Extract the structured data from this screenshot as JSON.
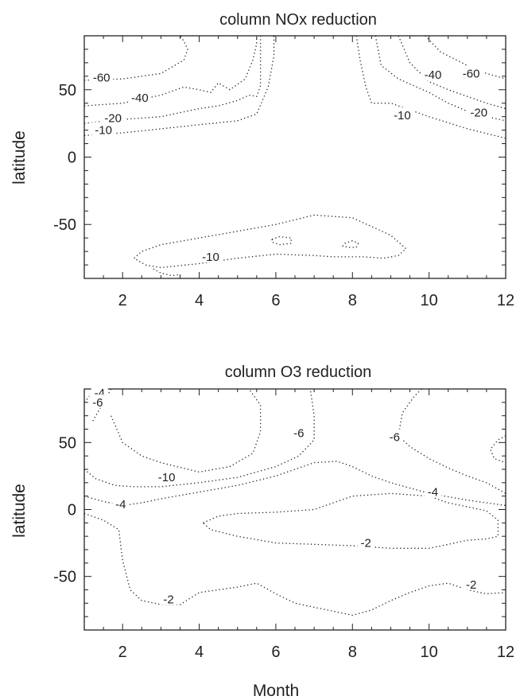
{
  "chart_data": [
    {
      "type": "contour",
      "title": "column NOx reduction",
      "xlabel": "",
      "ylabel": "latitude",
      "xlim": [
        1,
        12
      ],
      "ylim": [
        -90,
        90
      ],
      "xticks": [
        2,
        4,
        6,
        8,
        10,
        12
      ],
      "yticks": [
        -50,
        0,
        50
      ],
      "grid": false,
      "contours": [
        {
          "level": -60,
          "x": [
            1,
            2,
            3,
            3.6,
            3.7,
            3.6,
            3.5
          ],
          "y": [
            57,
            58,
            62,
            72,
            80,
            86,
            90
          ]
        },
        {
          "level": -40,
          "x": [
            1,
            2,
            3,
            3.6,
            4,
            4.3,
            4.5,
            4.8,
            5.2,
            5.4,
            5.5,
            5.5
          ],
          "y": [
            38,
            40,
            46,
            52,
            50,
            48,
            55,
            50,
            58,
            72,
            84,
            90
          ]
        },
        {
          "level": -20,
          "x": [
            1,
            2,
            3,
            4,
            4.5,
            5,
            5.3,
            5.5,
            5.6,
            5.6,
            5.6
          ],
          "y": [
            25,
            28,
            30,
            36,
            38,
            42,
            46,
            45,
            53,
            72,
            90
          ]
        },
        {
          "level": -10,
          "x": [
            1,
            2,
            3,
            4,
            5,
            5.5,
            5.8,
            5.95,
            5.95
          ],
          "y": [
            16,
            18,
            21,
            24,
            27,
            32,
            52,
            75,
            90
          ]
        },
        {
          "level": -60,
          "x": [
            9.9,
            10.3,
            11,
            11.5,
            12
          ],
          "y": [
            90,
            78,
            68,
            62,
            58
          ]
        },
        {
          "level": -40,
          "x": [
            9.2,
            9.5,
            10,
            10.5,
            11,
            11.5,
            12
          ],
          "y": [
            90,
            70,
            56,
            50,
            45,
            40,
            36
          ]
        },
        {
          "level": -20,
          "x": [
            8.6,
            8.75,
            9.2,
            10,
            10.5,
            11,
            11.5,
            12
          ],
          "y": [
            90,
            68,
            58,
            48,
            40,
            34,
            30,
            27
          ]
        },
        {
          "level": -10,
          "x": [
            8.1,
            8.2,
            8.35,
            8.5,
            9,
            10,
            11,
            12
          ],
          "y": [
            90,
            72,
            52,
            40,
            40,
            30,
            21,
            14
          ]
        },
        {
          "level": -10,
          "x": [
            2.3,
            2.5,
            3,
            4,
            5,
            6,
            7,
            8,
            9,
            9.4,
            9.2,
            8.8,
            8.3,
            7.5,
            7,
            6,
            5,
            4,
            3,
            2.6,
            2.3
          ],
          "y": [
            -75,
            -70,
            -65,
            -60,
            -55,
            -50,
            -43,
            -45,
            -58,
            -68,
            -73,
            -75,
            -74,
            -74,
            -73,
            -72,
            -75,
            -79,
            -82,
            -80,
            -75
          ]
        },
        {
          "level": -10,
          "x": [
            2.8,
            3.0,
            3.3,
            3.5,
            3.5
          ],
          "y": [
            -83,
            -86,
            -88,
            -87,
            -90
          ]
        },
        {
          "level": -10,
          "x": [
            5.9,
            6.1,
            6.4,
            6.4,
            6.1,
            5.9,
            5.9
          ],
          "y": [
            -61,
            -59,
            -60,
            -64,
            -65,
            -63,
            -61
          ]
        },
        {
          "level": -10,
          "x": [
            7.8,
            8.0,
            8.15,
            8.1,
            7.9,
            7.75,
            7.8
          ],
          "y": [
            -64,
            -62,
            -64,
            -67,
            -67,
            -66,
            -64
          ]
        }
      ],
      "labels": [
        {
          "text": "-60",
          "x": 1.45,
          "y": 59
        },
        {
          "text": "-40",
          "x": 2.45,
          "y": 44
        },
        {
          "text": "-20",
          "x": 1.75,
          "y": 29
        },
        {
          "text": "-10",
          "x": 1.5,
          "y": 20
        },
        {
          "text": "-40",
          "x": 10.1,
          "y": 61
        },
        {
          "text": "-60",
          "x": 11.1,
          "y": 62
        },
        {
          "text": "-10",
          "x": 9.3,
          "y": 31
        },
        {
          "text": "-20",
          "x": 11.3,
          "y": 33
        },
        {
          "text": "-10",
          "x": 4.3,
          "y": -74
        }
      ]
    },
    {
      "type": "contour",
      "title": "column O3  reduction",
      "xlabel": "Month",
      "ylabel": "latitude",
      "xlim": [
        1,
        12
      ],
      "ylim": [
        -90,
        90
      ],
      "xticks": [
        2,
        4,
        6,
        8,
        10,
        12
      ],
      "yticks": [
        -50,
        0,
        50
      ],
      "grid": false,
      "contours": [
        {
          "level": -10,
          "x": [
            1.7,
            2,
            2.5,
            3,
            4,
            4.8,
            5.4,
            5.6,
            5.6,
            5.3
          ],
          "y": [
            70,
            50,
            40,
            35,
            28,
            32,
            42,
            58,
            78,
            90
          ]
        },
        {
          "level": -6,
          "x": [
            1.7,
            1.6,
            1.4,
            1.2
          ],
          "y": [
            90,
            85,
            75,
            65
          ]
        },
        {
          "level": -6,
          "x": [
            1,
            1.3,
            1.8,
            2.3,
            3,
            4,
            5,
            6,
            6.6,
            7,
            7,
            6.9
          ],
          "y": [
            30,
            23,
            18,
            17,
            17,
            20,
            24,
            32,
            40,
            52,
            70,
            90
          ]
        },
        {
          "level": -6,
          "x": [
            9.8,
            9.6,
            9.3,
            9.2,
            9.5,
            10,
            10.5,
            11,
            11.5,
            12
          ],
          "y": [
            90,
            84,
            72,
            55,
            47,
            38,
            31,
            25,
            20,
            12
          ]
        },
        {
          "level": -6,
          "x": [
            12,
            11.8,
            11.6,
            11.7,
            11.9,
            12
          ],
          "y": [
            55,
            52,
            45,
            38,
            36,
            35
          ]
        },
        {
          "level": -4,
          "x": [
            1.35,
            1.15,
            1
          ],
          "y": [
            90,
            85,
            80
          ]
        },
        {
          "level": -4,
          "x": [
            1,
            1.5,
            2,
            2.5,
            3,
            4,
            5,
            6,
            7,
            7.6,
            8,
            8.5,
            9,
            10,
            11,
            11.5,
            12
          ],
          "y": [
            10,
            6,
            3,
            5,
            8,
            13,
            18,
            25,
            35,
            36,
            32,
            25,
            20,
            12,
            7,
            5,
            3
          ]
        },
        {
          "level": -2,
          "x": [
            4.1,
            4.5,
            5,
            6,
            7,
            8,
            9,
            10,
            10.5,
            11,
            11.5,
            11.8,
            11.8,
            11.5,
            11,
            10.5,
            10,
            9,
            8,
            7,
            6,
            5,
            4.3,
            4.1
          ],
          "y": [
            -10,
            -5,
            -3,
            -2,
            0,
            10,
            12,
            10,
            5,
            2,
            -1,
            -8,
            -20,
            -22,
            -23,
            -26,
            -29,
            -29,
            -27,
            -26,
            -25,
            -20,
            -15,
            -10
          ]
        },
        {
          "level": -2,
          "x": [
            1,
            1.5,
            1.9,
            2,
            2.2,
            2.5,
            3,
            3.5,
            4,
            5,
            5.5,
            6,
            6.5,
            7,
            7.5,
            8,
            8.5,
            9,
            9.5,
            10,
            10.5,
            11,
            11.5,
            12
          ],
          "y": [
            -3,
            -8,
            -15,
            -38,
            -60,
            -68,
            -71,
            -71,
            -62,
            -58,
            -55,
            -63,
            -70,
            -73,
            -76,
            -79,
            -75,
            -68,
            -62,
            -57,
            -55,
            -60,
            -63,
            -62
          ]
        }
      ],
      "labels": [
        {
          "text": "-4",
          "x": 1.4,
          "y": 87
        },
        {
          "text": "-6",
          "x": 1.35,
          "y": 80
        },
        {
          "text": "-10",
          "x": 3.15,
          "y": 24
        },
        {
          "text": "-6",
          "x": 6.6,
          "y": 57
        },
        {
          "text": "-6",
          "x": 9.1,
          "y": 54
        },
        {
          "text": "-4",
          "x": 10.1,
          "y": 13
        },
        {
          "text": "-4",
          "x": 1.95,
          "y": 4
        },
        {
          "text": "-2",
          "x": 8.35,
          "y": -25
        },
        {
          "text": "-2",
          "x": 3.2,
          "y": -67
        },
        {
          "text": "-2",
          "x": 11.1,
          "y": -56
        }
      ]
    }
  ]
}
